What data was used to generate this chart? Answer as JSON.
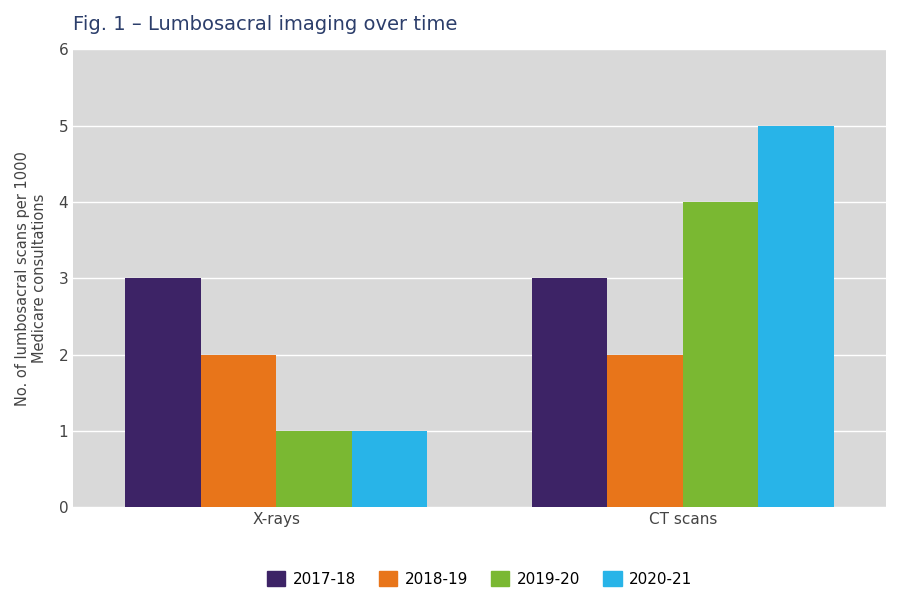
{
  "title": "Fig. 1 – Lumbosacral imaging over time",
  "ylabel": "No. of lumbosacral scans per 1000\nMedicare consultations",
  "categories": [
    "X-rays",
    "CT scans"
  ],
  "series": {
    "2017-18": [
      3,
      3
    ],
    "2018-19": [
      2,
      2
    ],
    "2019-20": [
      1,
      4
    ],
    "2020-21": [
      1,
      5
    ]
  },
  "colors": {
    "2017-18": "#3d2366",
    "2018-19": "#e8751a",
    "2019-20": "#7ab832",
    "2020-21": "#28b4e8"
  },
  "ylim": [
    0,
    6
  ],
  "yticks": [
    0,
    1,
    2,
    3,
    4,
    5,
    6
  ],
  "bar_width": 0.13,
  "fig_bg_color": "#ffffff",
  "plot_bg_color": "#d9d9d9",
  "title_color": "#2c3e6b",
  "axis_label_color": "#444444",
  "tick_label_color": "#444444",
  "grid_color": "#ffffff",
  "title_fontsize": 14,
  "ylabel_fontsize": 10.5,
  "tick_fontsize": 11,
  "legend_fontsize": 11,
  "group_centers": [
    0.3,
    1.0
  ]
}
